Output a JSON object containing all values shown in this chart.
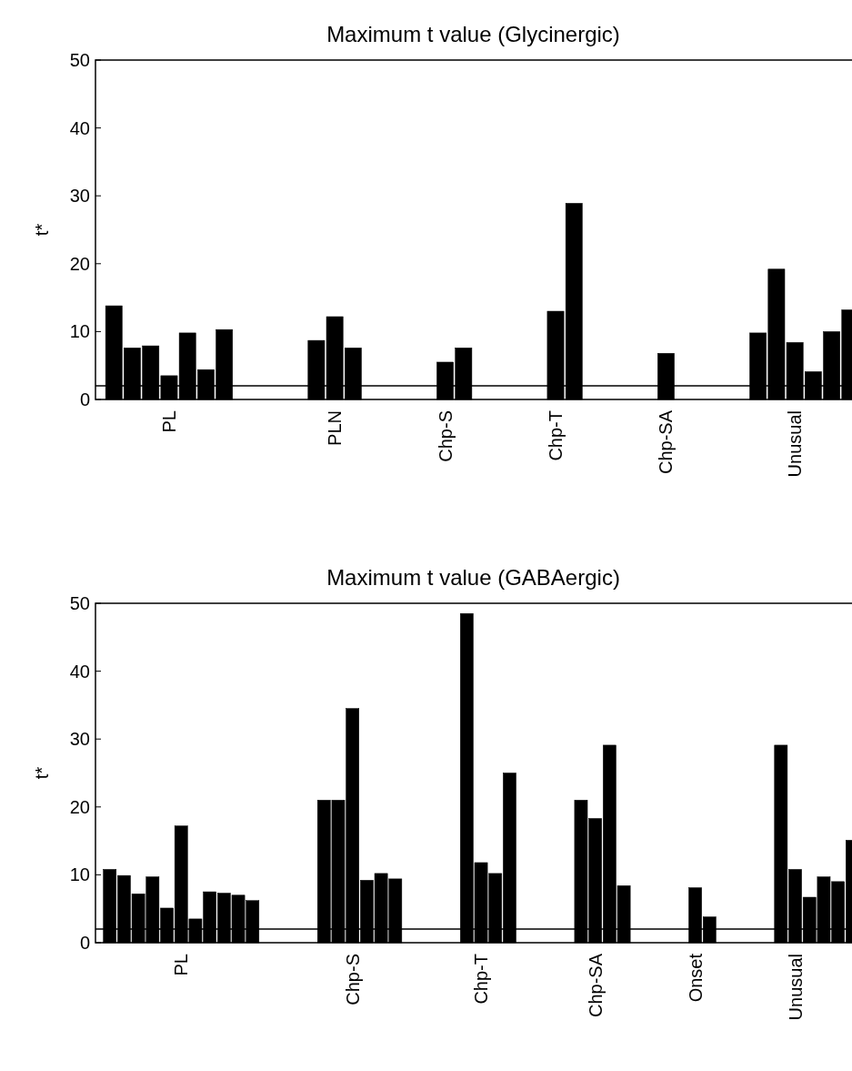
{
  "chart_data": [
    {
      "type": "bar",
      "title": "Maximum t value (Glycinergic)",
      "ylabel": "t*",
      "color": "#000000",
      "categories": [
        null,
        null,
        null,
        "PL",
        null,
        null,
        null,
        null,
        null,
        null,
        null,
        null,
        "PLN",
        null,
        null,
        null,
        null,
        null,
        "Chp-S",
        null,
        null,
        null,
        null,
        null,
        "Chp-T",
        null,
        null,
        null,
        null,
        null,
        "Chp-SA",
        null,
        null,
        null,
        null,
        null,
        null,
        "Unusual",
        null,
        null,
        null
      ],
      "values": [
        13.8,
        7.6,
        7.9,
        3.5,
        9.8,
        4.4,
        10.3,
        null,
        null,
        null,
        null,
        8.7,
        12.2,
        7.6,
        null,
        null,
        null,
        null,
        5.5,
        7.6,
        null,
        null,
        null,
        null,
        13.0,
        28.9,
        null,
        null,
        null,
        null,
        6.8,
        null,
        null,
        null,
        null,
        9.8,
        19.2,
        8.4,
        4.1,
        10.0,
        13.2
      ],
      "ylim": [
        0,
        50
      ],
      "yticks": [
        0,
        10,
        20,
        30,
        40,
        50
      ],
      "ref_lines": [
        {
          "axis": "y",
          "value": 2,
          "color": "#000000"
        }
      ]
    },
    {
      "type": "bar",
      "title": "Maximum t value (GABAergic)",
      "ylabel": "t*",
      "color": "#000000",
      "categories": [
        null,
        null,
        null,
        null,
        null,
        "PL",
        null,
        null,
        null,
        null,
        null,
        null,
        null,
        null,
        null,
        null,
        null,
        "Chp-S",
        null,
        null,
        null,
        null,
        null,
        null,
        null,
        null,
        "Chp-T",
        null,
        null,
        null,
        null,
        null,
        null,
        null,
        "Chp-SA",
        null,
        null,
        null,
        null,
        null,
        null,
        "Onset",
        null,
        null,
        null,
        null,
        null,
        null,
        "Unusual",
        null,
        null,
        null,
        null
      ],
      "values": [
        10.8,
        9.9,
        7.2,
        9.7,
        5.1,
        17.2,
        3.5,
        7.5,
        7.3,
        7.0,
        6.2,
        null,
        null,
        null,
        null,
        21.0,
        21.0,
        34.5,
        9.2,
        10.2,
        9.4,
        null,
        null,
        null,
        null,
        48.5,
        11.8,
        10.2,
        25.0,
        null,
        null,
        null,
        null,
        21.0,
        18.3,
        29.1,
        8.4,
        null,
        null,
        null,
        null,
        8.1,
        3.8,
        null,
        null,
        null,
        null,
        29.1,
        10.8,
        6.7,
        9.7,
        9.0,
        15.1
      ],
      "ylim": [
        0,
        50
      ],
      "yticks": [
        0,
        10,
        20,
        30,
        40,
        50
      ],
      "ref_lines": [
        {
          "axis": "y",
          "value": 2,
          "color": "#000000"
        }
      ]
    }
  ]
}
